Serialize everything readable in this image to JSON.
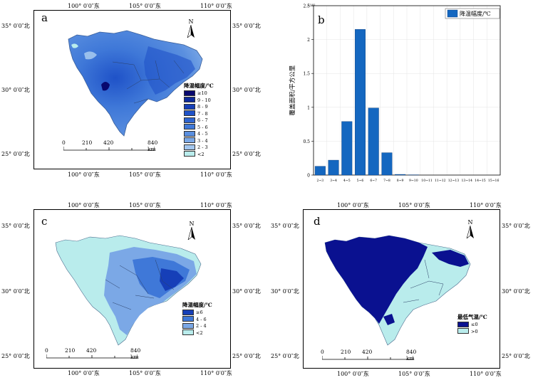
{
  "coords": {
    "lon": [
      "100° 0′0″东",
      "105° 0′0″东",
      "110° 0′0″东"
    ],
    "lat": [
      "35° 0′0″北",
      "30° 0′0″北",
      "25° 0′0″北"
    ]
  },
  "north_label": "N",
  "scale_labels": [
    "0",
    "210",
    "420",
    "840 km"
  ],
  "panel_a": {
    "letter": "a",
    "legend_title": "降温幅度/℃",
    "legend": [
      {
        "label": "≥10",
        "color": "#08086e"
      },
      {
        "label": "9 - 10",
        "color": "#0d2a9c"
      },
      {
        "label": "8 - 9",
        "color": "#163fb8"
      },
      {
        "label": "7 - 8",
        "color": "#1f52c8"
      },
      {
        "label": "6 - 7",
        "color": "#2d64d0"
      },
      {
        "label": "5 - 6",
        "color": "#3f78d8"
      },
      {
        "label": "4 - 5",
        "color": "#5a8fdf"
      },
      {
        "label": "3 - 4",
        "color": "#7ba8e6"
      },
      {
        "label": "2 - 3",
        "color": "#a3c6ee"
      },
      {
        "label": "<2",
        "color": "#b9ecec"
      }
    ]
  },
  "panel_c": {
    "letter": "c",
    "legend_title": "降温幅度/℃",
    "legend": [
      {
        "label": "≥6",
        "color": "#163fb8"
      },
      {
        "label": "4 - 6",
        "color": "#3f78d8"
      },
      {
        "label": "2 - 4",
        "color": "#7ba8e6"
      },
      {
        "label": "<2",
        "color": "#b9ecec"
      }
    ]
  },
  "panel_d": {
    "letter": "d",
    "legend_title": "最低气温/℃",
    "legend": [
      {
        "label": "≤0",
        "color": "#0a1190"
      },
      {
        "label": ">0",
        "color": "#b9ecec"
      }
    ]
  },
  "chart_data": {
    "type": "bar",
    "letter": "b",
    "categories": [
      "2~3",
      "3~4",
      "4~5",
      "5~6",
      "6~7",
      "7~8",
      "8~9",
      "9~10",
      "10~11",
      "11~12",
      "12~13",
      "13~14",
      "14~15",
      "15~16"
    ],
    "series": [
      {
        "name": "降温幅度/℃",
        "values": [
          0.13,
          0.22,
          0.79,
          2.15,
          0.99,
          0.33,
          0.01,
          0.004,
          0,
          0,
          0,
          0,
          0,
          0
        ]
      }
    ],
    "ylabel": "覆盖面积/平方公里",
    "yscale_label": "×10⁵",
    "ylim": [
      0,
      2.5
    ],
    "yticks": [
      "0",
      "0.5",
      "1",
      "1.5",
      "2",
      "2.5"
    ],
    "bar_color": "#1467c0",
    "grid": true,
    "legend_position": "top-right"
  }
}
